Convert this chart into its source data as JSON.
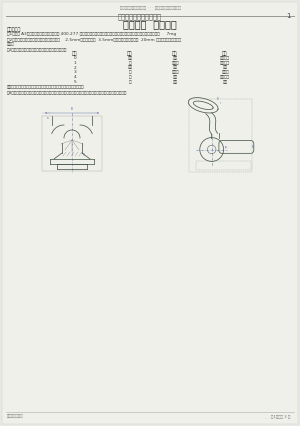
{
  "bg_color": "#e8e8e4",
  "page_bg": "#f0f0ea",
  "header_center": "高職制图员高级理论考试 · · · 高職制图员高级理论考试",
  "header_dots": "· · · · · · · · · · · · · · · · · ·",
  "title_main": "高職制图员高级理论考试",
  "page_num": "1",
  "section": "第一部分  作图准备",
  "req_label": "考试要求：",
  "req1": "（1）标准 A3图幅，用图区对折裁出合适（ 400.277 ）。纸对可放在下面做成有线框的，自行在框内兼划出近似相互考试字体     7mg",
  "req2": "（2）尺寸标注数据中用式，尺寸精度：平板为    2.5mm，圆头头直为  3.5mm，尺寸用箭头单头直为  20mm 其余参数使用系统默认",
  "req2b": "设置。",
  "req3": "（3）分层绘图，图别、图线、线型、线型需要如下：",
  "col_headers": [
    "图别",
    "颜色",
    "线型",
    "用途"
  ],
  "rows": [
    [
      "0",
      "黑白",
      "实线",
      "图幅边线"
    ],
    [
      "1",
      "红",
      "点划线",
      "细虚线线"
    ],
    [
      "2",
      "洋红",
      "虚线",
      "虚线"
    ],
    [
      "3",
      "蓝",
      "点画线",
      "中心线"
    ],
    [
      "4",
      "蓝",
      "实线",
      "尺寸标注"
    ],
    [
      "5",
      "蓝",
      "实线",
      "文字"
    ]
  ],
  "note_a": "其余参数使用系统默认値，尺不需要重点之间的图别，考生自行设置。",
  "req4": "（4）尺寸标注图形是一个文件中，尺寸标量在适合的，而后级根据提视图画解答，又对准采采参考自号轨。",
  "footer_left": "高職制图员审题",
  "footer_dots_l": "· · · · · · ·",
  "footer_right": "第1页，共 3 页",
  "footer_dots_r": "· · · · · · · · · ·"
}
